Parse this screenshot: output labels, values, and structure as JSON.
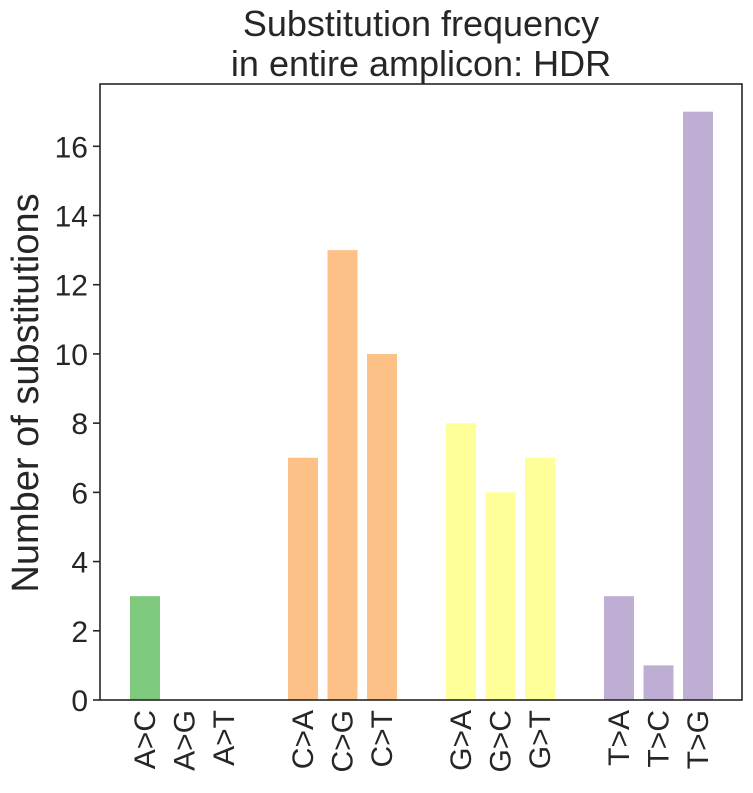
{
  "chart_data": {
    "type": "bar",
    "title": [
      "Substitution frequency",
      "in entire amplicon: HDR"
    ],
    "xlabel": "",
    "ylabel": "Number of substitutions",
    "ylim": [
      0,
      17.8
    ],
    "yticks": [
      0,
      2,
      4,
      6,
      8,
      10,
      12,
      14,
      16
    ],
    "grid": false,
    "legend": "none",
    "groups": [
      {
        "color": "#7fc97f",
        "categories": [
          "A>C",
          "A>G",
          "A>T"
        ],
        "values": [
          3,
          0,
          0
        ]
      },
      {
        "color": "#fdc086",
        "categories": [
          "C>A",
          "C>G",
          "C>T"
        ],
        "values": [
          7,
          13,
          10
        ]
      },
      {
        "color": "#ffff99",
        "categories": [
          "G>A",
          "G>C",
          "G>T"
        ],
        "values": [
          8,
          6,
          7
        ]
      },
      {
        "color": "#beaed4",
        "categories": [
          "T>A",
          "T>C",
          "T>G"
        ],
        "values": [
          3,
          1,
          17
        ]
      }
    ]
  }
}
